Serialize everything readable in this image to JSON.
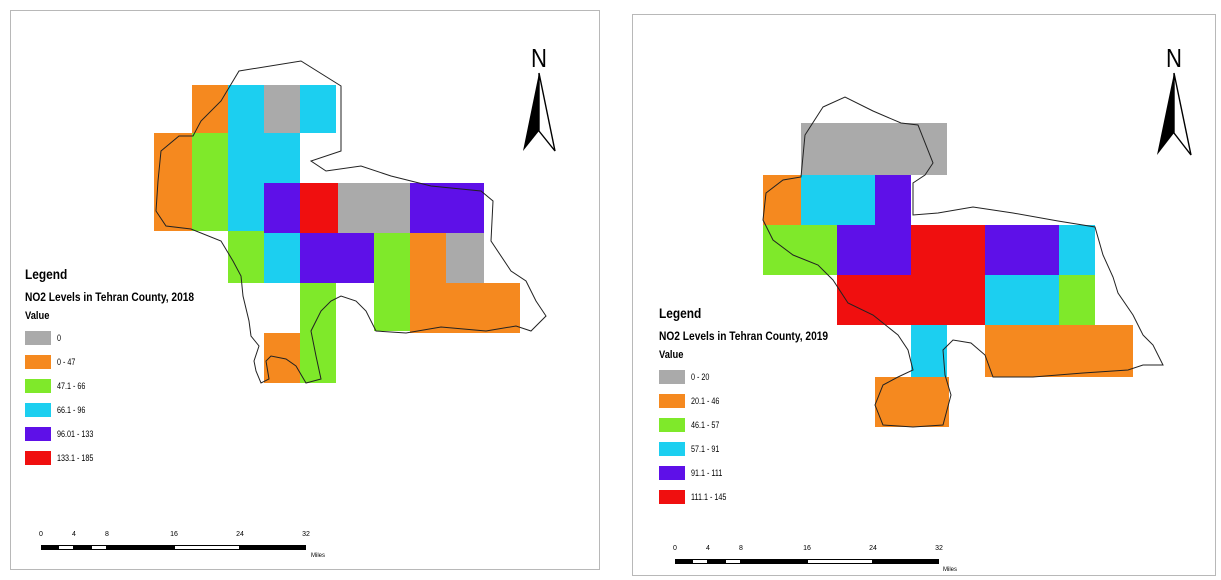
{
  "maps": [
    {
      "id": "2018",
      "legend_title": "Legend",
      "subtitle": "NO2 Levels  in Tehran County, 2018",
      "value_label": "Value",
      "north_label": "N",
      "classes": [
        {
          "label": "0",
          "color": "#aaaaaa"
        },
        {
          "label": "0 - 47",
          "color": "#f5891f"
        },
        {
          "label": "47.1 - 66",
          "color": "#7fe92a"
        },
        {
          "label": "66.1 - 96",
          "color": "#1ccff0"
        },
        {
          "label": "96.01 - 133",
          "color": "#5e10e8"
        },
        {
          "label": "133.1 - 185",
          "color": "#f00f0f"
        }
      ],
      "scale_ticks": [
        "0",
        "4",
        "8",
        "16",
        "24",
        "32"
      ],
      "scale_units": "Miles"
    },
    {
      "id": "2019",
      "legend_title": "Legend",
      "subtitle": "NO2 Levels  in Tehran County, 2019",
      "value_label": "Value",
      "north_label": "N",
      "classes": [
        {
          "label": "0 - 20",
          "color": "#aaaaaa"
        },
        {
          "label": "20.1 - 46",
          "color": "#f5891f"
        },
        {
          "label": "46.1 - 57",
          "color": "#7fe92a"
        },
        {
          "label": "57.1 - 91",
          "color": "#1ccff0"
        },
        {
          "label": "91.1 - 111",
          "color": "#5e10e8"
        },
        {
          "label": "111.1 - 145",
          "color": "#f00f0f"
        }
      ],
      "scale_ticks": [
        "0",
        "4",
        "8",
        "16",
        "24",
        "32"
      ],
      "scale_units": "Miles"
    }
  ]
}
